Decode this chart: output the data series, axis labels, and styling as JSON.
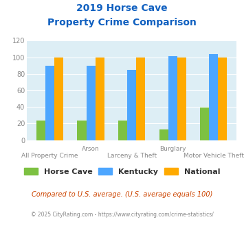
{
  "title_line1": "2019 Horse Cave",
  "title_line2": "Property Crime Comparison",
  "categories": [
    "All Property Crime",
    "Arson",
    "Larceny & Theft",
    "Burglary",
    "Motor Vehicle Theft"
  ],
  "top_labels": [
    "",
    "Arson",
    "",
    "Burglary",
    ""
  ],
  "bottom_labels": [
    "All Property Crime",
    "",
    "Larceny & Theft",
    "",
    "Motor Vehicle Theft"
  ],
  "horse_cave": [
    24,
    24,
    24,
    13,
    39
  ],
  "kentucky": [
    90,
    90,
    85,
    101,
    104
  ],
  "national": [
    100,
    100,
    100,
    100,
    100
  ],
  "horse_cave_color": "#7dc142",
  "kentucky_color": "#4da6ff",
  "national_color": "#ffaa00",
  "background_color": "#ddeef5",
  "title_color": "#1060c0",
  "ylim": [
    0,
    120
  ],
  "yticks": [
    0,
    20,
    40,
    60,
    80,
    100,
    120
  ],
  "legend_labels": [
    "Horse Cave",
    "Kentucky",
    "National"
  ],
  "footnote1": "Compared to U.S. average. (U.S. average equals 100)",
  "footnote2": "© 2025 CityRating.com - https://www.cityrating.com/crime-statistics/",
  "footnote1_color": "#cc4400",
  "footnote2_color": "#888888"
}
